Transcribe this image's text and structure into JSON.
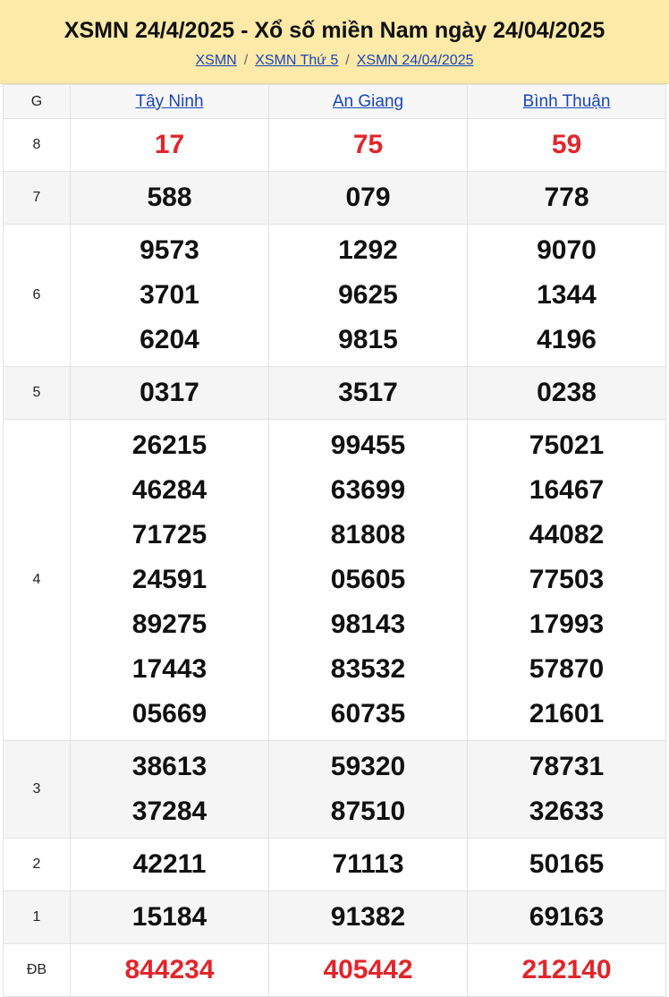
{
  "header": {
    "title": "XSMN 24/4/2025 - Xổ số miền Nam ngày 24/04/2025",
    "breadcrumbs": [
      "XSMN",
      "XSMN Thứ 5",
      "XSMN 24/04/2025"
    ]
  },
  "table": {
    "columns": [
      "G",
      "Tây Ninh",
      "An Giang",
      "Bình Thuận"
    ],
    "rows": [
      {
        "prize": "8",
        "results": [
          [
            "17"
          ],
          [
            "75"
          ],
          [
            "59"
          ]
        ]
      },
      {
        "prize": "7",
        "results": [
          [
            "588"
          ],
          [
            "079"
          ],
          [
            "778"
          ]
        ]
      },
      {
        "prize": "6",
        "results": [
          [
            "9573",
            "3701",
            "6204"
          ],
          [
            "1292",
            "9625",
            "9815"
          ],
          [
            "9070",
            "1344",
            "4196"
          ]
        ]
      },
      {
        "prize": "5",
        "results": [
          [
            "0317"
          ],
          [
            "3517"
          ],
          [
            "0238"
          ]
        ]
      },
      {
        "prize": "4",
        "results": [
          [
            "26215",
            "46284",
            "71725",
            "24591",
            "89275",
            "17443",
            "05669"
          ],
          [
            "99455",
            "63699",
            "81808",
            "05605",
            "98143",
            "83532",
            "60735"
          ],
          [
            "75021",
            "16467",
            "44082",
            "77503",
            "17993",
            "57870",
            "21601"
          ]
        ]
      },
      {
        "prize": "3",
        "results": [
          [
            "38613",
            "37284"
          ],
          [
            "59320",
            "87510"
          ],
          [
            "78731",
            "32633"
          ]
        ]
      },
      {
        "prize": "2",
        "results": [
          [
            "42211"
          ],
          [
            "71113"
          ],
          [
            "50165"
          ]
        ]
      },
      {
        "prize": "1",
        "results": [
          [
            "15184"
          ],
          [
            "91382"
          ],
          [
            "69163"
          ]
        ]
      },
      {
        "prize": "ĐB",
        "results": [
          [
            "844234"
          ],
          [
            "405442"
          ],
          [
            "212140"
          ]
        ]
      }
    ]
  }
}
